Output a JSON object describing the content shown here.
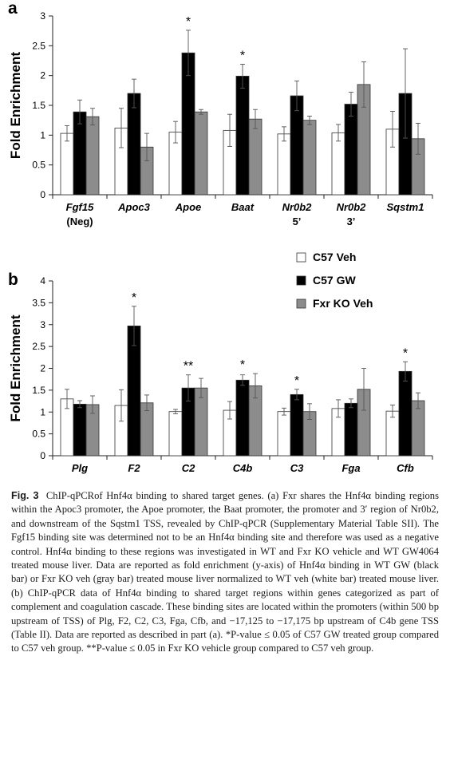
{
  "colors": {
    "c57_veh": "#ffffff",
    "c57_gw": "#000000",
    "fxr_ko_veh": "#8c8c8c",
    "axis": "#222222"
  },
  "chart_data": [
    {
      "type": "bar",
      "panel": "a",
      "ylabel": "Fold Enrichment",
      "ylim": [
        0,
        3
      ],
      "yticks": [
        "0",
        "0.5",
        "1",
        "1.5",
        "2",
        "2.5",
        "3"
      ],
      "categories": [
        {
          "label": "Fgf15",
          "sub": "(Neg)"
        },
        {
          "label": "Apoc3",
          "sub": ""
        },
        {
          "label": "Apoe",
          "sub": ""
        },
        {
          "label": "Baat",
          "sub": ""
        },
        {
          "label": "Nr0b2",
          "sub": "5’"
        },
        {
          "label": "Nr0b2",
          "sub": "3’"
        },
        {
          "label": "Sqstm1",
          "sub": ""
        }
      ],
      "series": [
        {
          "values": [
            1.03,
            1.12,
            1.05,
            1.08,
            1.02,
            1.04,
            1.1
          ],
          "errors": [
            0.13,
            0.33,
            0.18,
            0.27,
            0.12,
            0.14,
            0.3
          ]
        },
        {
          "values": [
            1.39,
            1.7,
            2.38,
            1.99,
            1.66,
            1.52,
            1.7
          ],
          "errors": [
            0.2,
            0.24,
            0.38,
            0.2,
            0.25,
            0.2,
            0.75
          ]
        },
        {
          "values": [
            1.31,
            0.8,
            1.39,
            1.27,
            1.25,
            1.85,
            0.94
          ],
          "errors": [
            0.14,
            0.23,
            0.04,
            0.16,
            0.07,
            0.38,
            0.26
          ]
        }
      ],
      "significance": [
        "",
        "",
        "*",
        "*",
        "",
        "",
        ""
      ]
    },
    {
      "type": "bar",
      "panel": "b",
      "ylabel": "Fold Enrichment",
      "ylim": [
        0,
        4
      ],
      "yticks": [
        "0",
        "0.5",
        "1",
        "1.5",
        "2",
        "2.5",
        "3",
        "3.5",
        "4"
      ],
      "categories": [
        {
          "label": "Plg",
          "sub": ""
        },
        {
          "label": "F2",
          "sub": ""
        },
        {
          "label": "C2",
          "sub": ""
        },
        {
          "label": "C4b",
          "sub": ""
        },
        {
          "label": "C3",
          "sub": ""
        },
        {
          "label": "Fga",
          "sub": ""
        },
        {
          "label": "Cfb",
          "sub": ""
        }
      ],
      "series": [
        {
          "name": "C57 Veh",
          "values": [
            1.3,
            1.15,
            1.01,
            1.04,
            1.01,
            1.08,
            1.02
          ],
          "errors": [
            0.22,
            0.36,
            0.05,
            0.2,
            0.08,
            0.2,
            0.14
          ]
        },
        {
          "name": "C57 GW",
          "values": [
            1.18,
            2.97,
            1.55,
            1.73,
            1.4,
            1.2,
            1.93
          ],
          "errors": [
            0.08,
            0.45,
            0.3,
            0.12,
            0.12,
            0.1,
            0.22
          ]
        },
        {
          "name": "Fxr KO Veh",
          "values": [
            1.17,
            1.21,
            1.55,
            1.6,
            1.01,
            1.52,
            1.26
          ],
          "errors": [
            0.2,
            0.18,
            0.22,
            0.28,
            0.18,
            0.48,
            0.18
          ]
        }
      ],
      "significance": [
        "",
        "*",
        "**",
        "*",
        "*",
        "",
        "*"
      ],
      "legend_position": "top-right"
    }
  ],
  "caption": {
    "fig_label": "Fig. 3",
    "text": "ChIP-qPCRof Hnf4α binding to shared target genes. (a) Fxr shares the Hnf4α binding regions within the Apoc3 promoter, the Apoe promoter, the Baat promoter, the promoter and 3′ region of Nr0b2, and downstream of the Sqstm1 TSS, revealed by ChIP-qPCR (Supplementary Material Table SII). The Fgf15 binding site was determined not to be an Hnf4α binding site and therefore was used as a negative control. Hnf4α binding to these regions was investigated in WT and Fxr KO vehicle and WT GW4064 treated mouse liver. Data are reported as fold enrichment (y-axis) of Hnf4α binding in WT GW (black bar) or Fxr KO veh (gray bar) treated mouse liver normalized to WT veh (white bar) treated mouse liver. (b) ChIP-qPCR data of Hnf4α binding to shared target regions within genes categorized as part of complement and coagulation cascade. These binding sites are located within the promoters (within 500 bp upstream of TSS) of Plg, F2, C2, C3, Fga, Cfb, and −17,125 to −17,175 bp upstream of C4b gene TSS (Table II). Data are reported as described in part (a). *P-value ≤ 0.05 of C57 GW treated group compared to C57 veh group. **P-value ≤ 0.05 in Fxr KO vehicle group compared to C57 veh group."
  }
}
